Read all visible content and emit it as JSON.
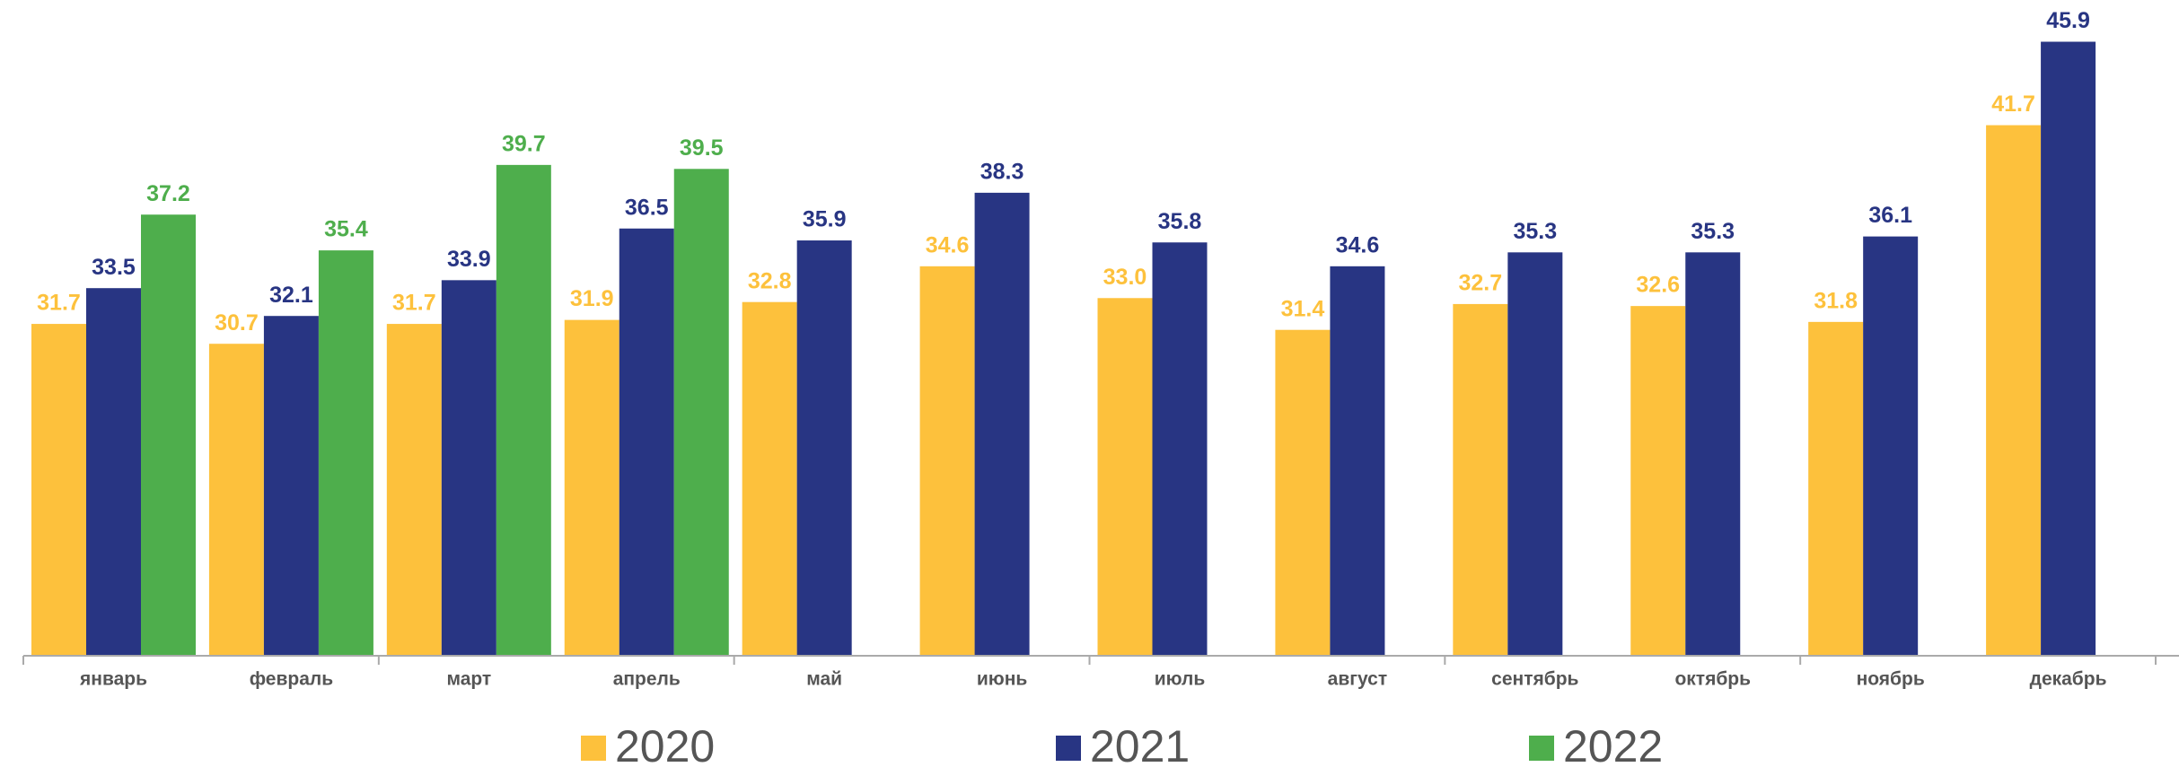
{
  "chart_data": {
    "type": "bar",
    "categories": [
      "январь",
      "февраль",
      "март",
      "апрель",
      "май",
      "июнь",
      "июль",
      "август",
      "сентябрь",
      "октябрь",
      "ноябрь",
      "декабрь"
    ],
    "series": [
      {
        "name": "2020",
        "color": "#fdc13c",
        "values": [
          31.7,
          30.7,
          31.7,
          31.9,
          32.8,
          34.6,
          33.0,
          31.4,
          32.7,
          32.6,
          31.8,
          41.7
        ],
        "value_labels": [
          "31.7",
          "30.7",
          "31.7",
          "31.9",
          "32.8",
          "34.6",
          "33.0",
          "31.4",
          "32.7",
          "32.6",
          "31.8",
          "41.7"
        ]
      },
      {
        "name": "2021",
        "color": "#283583",
        "values": [
          33.5,
          32.1,
          33.9,
          36.5,
          35.9,
          38.3,
          35.8,
          34.6,
          35.3,
          35.3,
          36.1,
          45.9
        ],
        "value_labels": [
          "33.5",
          "32.1",
          "33.9",
          "36.5",
          "35.9",
          "38.3",
          "35.8",
          "34.6",
          "35.3",
          "35.3",
          "36.1",
          "45.9"
        ]
      },
      {
        "name": "2022",
        "color": "#4eae4c",
        "values": [
          37.2,
          35.4,
          39.7,
          39.5,
          null,
          null,
          null,
          null,
          null,
          null,
          null,
          null
        ],
        "value_labels": [
          "37.2",
          "35.4",
          "39.7",
          "39.5",
          null,
          null,
          null,
          null,
          null,
          null,
          null,
          null
        ]
      }
    ],
    "ylim": [
      15,
      48
    ]
  }
}
